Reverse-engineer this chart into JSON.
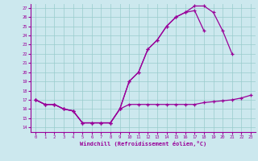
{
  "xlabel": "Windchill (Refroidissement éolien,°C)",
  "bg_color": "#cce8ee",
  "line_color": "#990099",
  "grid_color": "#99cccc",
  "xlim": [
    -0.5,
    23.5
  ],
  "ylim": [
    13.5,
    27.5
  ],
  "xticks": [
    0,
    1,
    2,
    3,
    4,
    5,
    6,
    7,
    8,
    9,
    10,
    11,
    12,
    13,
    14,
    15,
    16,
    17,
    18,
    19,
    20,
    21,
    22,
    23
  ],
  "yticks": [
    14,
    15,
    16,
    17,
    18,
    19,
    20,
    21,
    22,
    23,
    24,
    25,
    26,
    27
  ],
  "line1_x": [
    0,
    1,
    2,
    3,
    4,
    5,
    6,
    7,
    8,
    9,
    10,
    11,
    12,
    13,
    14,
    15,
    16,
    17,
    18,
    19,
    20,
    21,
    22,
    23
  ],
  "line1_y": [
    17,
    16.5,
    16.5,
    16,
    15.8,
    14.5,
    14.5,
    14.5,
    14.5,
    16,
    16.5,
    16.5,
    16.5,
    16.5,
    16.5,
    16.5,
    16.5,
    16.5,
    16.7,
    16.8,
    16.9,
    17,
    17.2,
    17.5
  ],
  "line2_x": [
    0,
    1,
    2,
    3,
    4,
    5,
    6,
    7,
    8,
    9,
    10,
    11,
    12,
    13,
    14,
    15,
    16,
    17,
    18,
    19,
    20,
    21,
    22,
    23
  ],
  "line2_y": [
    17,
    16.5,
    16.5,
    16,
    15.8,
    14.5,
    14.5,
    14.5,
    14.5,
    16,
    19,
    20,
    22.5,
    23.5,
    25,
    26,
    26.5,
    27.2,
    27.2,
    26.5,
    24.5,
    22,
    null,
    null
  ],
  "line3_x": [
    0,
    1,
    2,
    3,
    4,
    5,
    6,
    7,
    8,
    9,
    10,
    11,
    12,
    13,
    14,
    15,
    16,
    17,
    18,
    19,
    20,
    21,
    22,
    23
  ],
  "line3_y": [
    17,
    16.5,
    16.5,
    16,
    15.8,
    14.5,
    14.5,
    14.5,
    14.5,
    16,
    19,
    20,
    22.5,
    23.5,
    25,
    26,
    26.5,
    26.7,
    24.5,
    null,
    null,
    null,
    null,
    null
  ]
}
